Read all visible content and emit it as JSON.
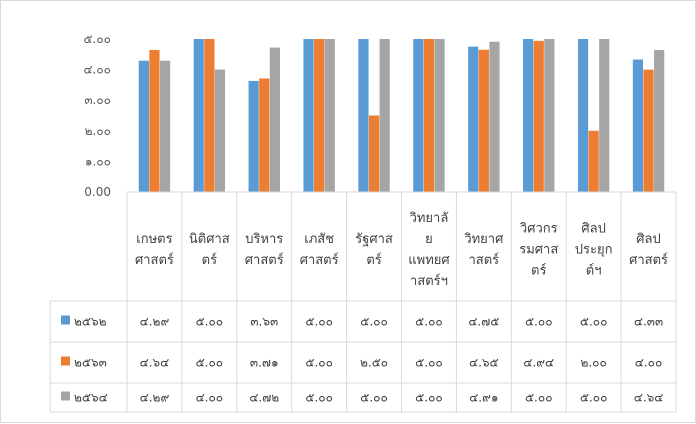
{
  "chart_data": {
    "type": "bar",
    "categories": [
      [
        "เกษตร",
        "ศาสตร์"
      ],
      [
        "นิติศาส",
        "ตร์"
      ],
      [
        "บริหาร",
        "ศาสตร์"
      ],
      [
        "เภสัช",
        "ศาสตร์"
      ],
      [
        "รัฐศาส",
        "ตร์"
      ],
      [
        "วิทยาลั",
        "ย",
        "แพทยศ",
        "าสตร์ฯ"
      ],
      [
        "วิทยาศ",
        "าสตร์"
      ],
      [
        "วิศวกร",
        "รมศาส",
        "ตร์"
      ],
      [
        "ศิลป",
        "ประยุก",
        "ต์ฯ"
      ],
      [
        "ศิลป",
        "ศาสตร์"
      ]
    ],
    "series": [
      {
        "name": "๒๕๖๒",
        "color": "#5b9bd5",
        "values": [
          4.29,
          5.0,
          3.63,
          5.0,
          5.0,
          5.0,
          4.75,
          5.0,
          5.0,
          4.33
        ],
        "labels": [
          "๔.๒๙",
          "๕.๐๐",
          "๓.๖๓",
          "๕.๐๐",
          "๕.๐๐",
          "๕.๐๐",
          "๔.๗๕",
          "๕.๐๐",
          "๕.๐๐",
          "๔.๓๓"
        ]
      },
      {
        "name": "๒๕๖๓",
        "color": "#ed7d31",
        "values": [
          4.64,
          5.0,
          3.71,
          5.0,
          2.5,
          5.0,
          4.65,
          4.94,
          2.0,
          4.0
        ],
        "labels": [
          "๔.๖๔",
          "๕.๐๐",
          "๓.๗๑",
          "๕.๐๐",
          "๒.๕๐",
          "๕.๐๐",
          "๔.๖๕",
          "๔.๙๔",
          "๒.๐๐",
          "๔.๐๐"
        ]
      },
      {
        "name": "๒๕๖๔",
        "color": "#a5a5a5",
        "values": [
          4.29,
          4.0,
          4.72,
          5.0,
          5.0,
          5.0,
          4.91,
          5.0,
          5.0,
          4.64
        ],
        "labels": [
          "๔.๒๙",
          "๔.๐๐",
          "๔.๗๒",
          "๕.๐๐",
          "๕.๐๐",
          "๕.๐๐",
          "๔.๙๑",
          "๕.๐๐",
          "๕.๐๐",
          "๔.๖๔"
        ]
      }
    ],
    "y_ticks": [
      {
        "value": 0,
        "label": "0.00"
      },
      {
        "value": 1,
        "label": "๑.๐๐"
      },
      {
        "value": 2,
        "label": "๒.๐๐"
      },
      {
        "value": 3,
        "label": "๓.๐๐"
      },
      {
        "value": 4,
        "label": "๔.๐๐"
      },
      {
        "value": 5,
        "label": "๕.๐๐"
      }
    ],
    "ylim": [
      0,
      5
    ],
    "grid": false,
    "legend": "data-table"
  }
}
